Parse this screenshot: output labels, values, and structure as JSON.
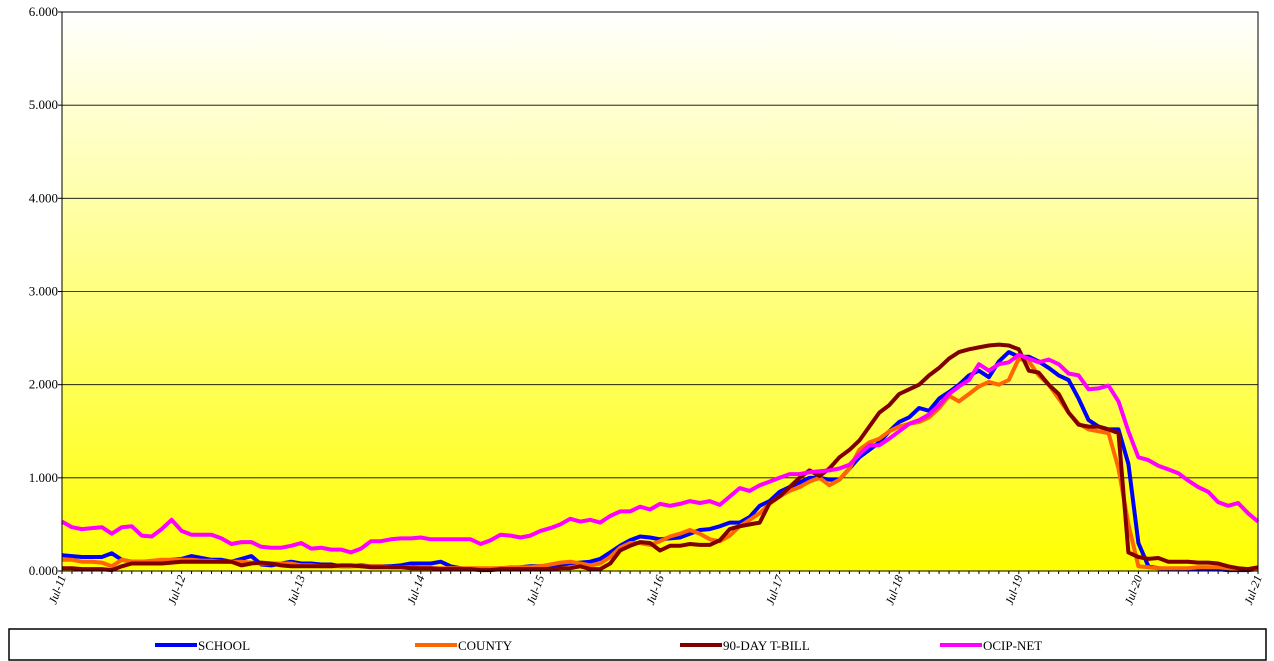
{
  "chart_data": {
    "type": "line",
    "categories": [
      "Jul-11",
      null,
      null,
      null,
      null,
      null,
      null,
      null,
      null,
      null,
      null,
      null,
      "Jul-12",
      null,
      null,
      null,
      null,
      null,
      null,
      null,
      null,
      null,
      null,
      null,
      "Jul-13",
      null,
      null,
      null,
      null,
      null,
      null,
      null,
      null,
      null,
      null,
      null,
      "Jul-14",
      null,
      null,
      null,
      null,
      null,
      null,
      null,
      null,
      null,
      null,
      null,
      "Jul-15",
      null,
      null,
      null,
      null,
      null,
      null,
      null,
      null,
      null,
      null,
      null,
      "Jul-16",
      null,
      null,
      null,
      null,
      null,
      null,
      null,
      null,
      null,
      null,
      null,
      "Jul-17",
      null,
      null,
      null,
      null,
      null,
      null,
      null,
      null,
      null,
      null,
      null,
      "Jul-18",
      null,
      null,
      null,
      null,
      null,
      null,
      null,
      null,
      null,
      null,
      null,
      "Jul-19",
      null,
      null,
      null,
      null,
      null,
      null,
      null,
      null,
      null,
      null,
      null,
      "Jul-20",
      null,
      null,
      null,
      null,
      null,
      null,
      null,
      null,
      null,
      null,
      null,
      "Jul-21"
    ],
    "series": [
      {
        "name": "SCHOOL",
        "color": "#0000ff",
        "values": [
          0.17,
          0.16,
          0.15,
          0.15,
          0.15,
          0.19,
          0.12,
          0.1,
          0.1,
          0.1,
          0.1,
          0.12,
          0.13,
          0.16,
          0.14,
          0.12,
          0.12,
          0.1,
          0.13,
          0.16,
          0.07,
          0.06,
          0.08,
          0.1,
          0.08,
          0.08,
          0.07,
          0.07,
          0.05,
          0.05,
          0.06,
          0.05,
          0.05,
          0.05,
          0.06,
          0.08,
          0.08,
          0.08,
          0.1,
          0.05,
          0.03,
          0.02,
          0.02,
          0.02,
          0.03,
          0.03,
          0.04,
          0.05,
          0.05,
          0.06,
          0.07,
          0.08,
          0.09,
          0.1,
          0.13,
          0.2,
          0.27,
          0.33,
          0.37,
          0.36,
          0.34,
          0.35,
          0.36,
          0.4,
          0.44,
          0.45,
          0.48,
          0.52,
          0.52,
          0.58,
          0.7,
          0.75,
          0.85,
          0.9,
          0.95,
          1.0,
          1.0,
          0.98,
          0.98,
          1.1,
          1.22,
          1.3,
          1.38,
          1.5,
          1.6,
          1.65,
          1.75,
          1.72,
          1.85,
          1.92,
          2.0,
          2.1,
          2.15,
          2.08,
          2.25,
          2.35,
          2.3,
          2.3,
          2.25,
          2.18,
          2.1,
          2.05,
          1.85,
          1.62,
          1.55,
          1.52,
          1.52,
          1.15,
          0.3,
          0.05,
          0.03,
          0.02,
          0.02,
          0.02,
          0.02,
          0.02,
          0.02,
          0.01,
          0.01,
          0.01,
          0.02
        ]
      },
      {
        "name": "COUNTY",
        "color": "#ff6600",
        "values": [
          0.12,
          0.12,
          0.1,
          0.1,
          0.09,
          0.05,
          0.12,
          0.1,
          0.1,
          0.11,
          0.12,
          0.12,
          0.12,
          0.12,
          0.11,
          0.11,
          0.1,
          0.1,
          0.1,
          0.09,
          0.08,
          0.08,
          0.08,
          0.08,
          0.06,
          0.06,
          0.05,
          0.05,
          0.05,
          0.05,
          0.05,
          0.05,
          0.05,
          0.04,
          0.04,
          0.04,
          0.03,
          0.03,
          0.03,
          0.03,
          0.03,
          0.03,
          0.03,
          0.03,
          0.03,
          0.04,
          0.04,
          0.04,
          0.05,
          0.07,
          0.09,
          0.1,
          0.08,
          0.06,
          0.08,
          0.15,
          0.25,
          0.3,
          0.3,
          0.28,
          0.32,
          0.37,
          0.4,
          0.44,
          0.4,
          0.34,
          0.32,
          0.38,
          0.48,
          0.55,
          0.62,
          0.72,
          0.8,
          0.86,
          0.9,
          0.96,
          1.0,
          0.92,
          0.98,
          1.1,
          1.3,
          1.38,
          1.42,
          1.5,
          1.55,
          1.58,
          1.6,
          1.65,
          1.75,
          1.88,
          1.82,
          1.9,
          1.98,
          2.03,
          2.0,
          2.05,
          2.28,
          2.25,
          2.1,
          2.0,
          1.85,
          1.7,
          1.58,
          1.52,
          1.5,
          1.48,
          1.1,
          0.5,
          0.05,
          0.04,
          0.03,
          0.03,
          0.03,
          0.03,
          0.04,
          0.04,
          0.04,
          0.03,
          0.02,
          0.02,
          0.02
        ]
      },
      {
        "name": "90-DAY T-BILL",
        "color": "#800000",
        "values": [
          0.03,
          0.03,
          0.02,
          0.02,
          0.02,
          0.01,
          0.05,
          0.08,
          0.08,
          0.08,
          0.08,
          0.09,
          0.1,
          0.1,
          0.1,
          0.1,
          0.1,
          0.1,
          0.06,
          0.08,
          0.09,
          0.08,
          0.06,
          0.05,
          0.05,
          0.05,
          0.05,
          0.05,
          0.06,
          0.06,
          0.05,
          0.04,
          0.04,
          0.04,
          0.04,
          0.03,
          0.03,
          0.03,
          0.02,
          0.02,
          0.02,
          0.02,
          0.01,
          0.01,
          0.02,
          0.02,
          0.02,
          0.02,
          0.02,
          0.02,
          0.03,
          0.03,
          0.05,
          0.02,
          0.02,
          0.08,
          0.22,
          0.27,
          0.31,
          0.3,
          0.22,
          0.27,
          0.27,
          0.29,
          0.28,
          0.28,
          0.33,
          0.45,
          0.48,
          0.5,
          0.52,
          0.73,
          0.8,
          0.9,
          1.0,
          1.08,
          1.02,
          1.1,
          1.22,
          1.3,
          1.4,
          1.55,
          1.7,
          1.78,
          1.9,
          1.95,
          2.0,
          2.1,
          2.18,
          2.28,
          2.35,
          2.38,
          2.4,
          2.42,
          2.43,
          2.42,
          2.38,
          2.15,
          2.13,
          2.0,
          1.9,
          1.7,
          1.57,
          1.55,
          1.55,
          1.52,
          1.48,
          0.2,
          0.15,
          0.13,
          0.14,
          0.1,
          0.1,
          0.1,
          0.09,
          0.09,
          0.08,
          0.05,
          0.03,
          0.02,
          0.04
        ]
      },
      {
        "name": "OCIP-NET",
        "color": "#ff00ff",
        "values": [
          0.53,
          0.47,
          0.45,
          0.46,
          0.47,
          0.4,
          0.47,
          0.48,
          0.38,
          0.37,
          0.45,
          0.55,
          0.43,
          0.39,
          0.39,
          0.39,
          0.35,
          0.29,
          0.31,
          0.31,
          0.26,
          0.25,
          0.25,
          0.27,
          0.3,
          0.24,
          0.25,
          0.23,
          0.23,
          0.2,
          0.24,
          0.32,
          0.32,
          0.34,
          0.35,
          0.35,
          0.36,
          0.34,
          0.34,
          0.34,
          0.34,
          0.34,
          0.29,
          0.33,
          0.39,
          0.38,
          0.36,
          0.38,
          0.43,
          0.46,
          0.5,
          0.56,
          0.53,
          0.55,
          0.52,
          0.59,
          0.64,
          0.64,
          0.69,
          0.66,
          0.72,
          0.7,
          0.72,
          0.75,
          0.73,
          0.75,
          0.71,
          0.8,
          0.89,
          0.86,
          0.92,
          0.96,
          1.0,
          1.04,
          1.04,
          1.06,
          1.07,
          1.08,
          1.1,
          1.14,
          1.25,
          1.35,
          1.35,
          1.42,
          1.5,
          1.58,
          1.62,
          1.68,
          1.78,
          1.9,
          1.98,
          2.05,
          2.22,
          2.15,
          2.22,
          2.24,
          2.32,
          2.28,
          2.24,
          2.27,
          2.22,
          2.12,
          2.1,
          1.95,
          1.96,
          1.99,
          1.82,
          1.5,
          1.22,
          1.19,
          1.13,
          1.09,
          1.05,
          0.97,
          0.9,
          0.85,
          0.74,
          0.7,
          0.73,
          0.62,
          0.53
        ]
      }
    ],
    "ylim": [
      0,
      6
    ],
    "yticks": [
      {
        "value": 0,
        "label": "0.000"
      },
      {
        "value": 1,
        "label": "1.000"
      },
      {
        "value": 2,
        "label": "2.000"
      },
      {
        "value": 3,
        "label": "3.000"
      },
      {
        "value": 4,
        "label": "4.000"
      },
      {
        "value": 5,
        "label": "5.000"
      },
      {
        "value": 6,
        "label": "6.000"
      }
    ],
    "grid": true,
    "legend": "bottom"
  }
}
